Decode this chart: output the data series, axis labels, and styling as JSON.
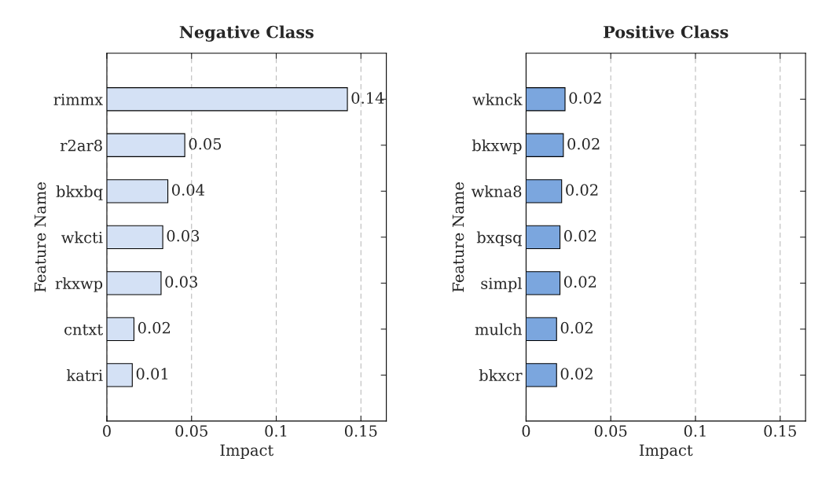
{
  "chart_data": [
    {
      "type": "bar",
      "orientation": "horizontal",
      "title": "Negative Class",
      "xlabel": "Impact",
      "ylabel": "Feature Name",
      "categories": [
        "rimmx",
        "r2ar8",
        "bkxbq",
        "wkcti",
        "rkxwp",
        "cntxt",
        "katri"
      ],
      "values": [
        0.142,
        0.046,
        0.036,
        0.033,
        0.032,
        0.016,
        0.015
      ],
      "value_labels": [
        "0.14",
        "0.05",
        "0.04",
        "0.03",
        "0.03",
        "0.02",
        "0.01"
      ],
      "color": "#d4e1f5",
      "xlim": [
        0,
        0.165
      ],
      "xticks": [
        0,
        0.05,
        0.1,
        0.15
      ],
      "grid": "x"
    },
    {
      "type": "bar",
      "orientation": "horizontal",
      "title": "Positive Class",
      "xlabel": "Impact",
      "ylabel": "Feature Name",
      "categories": [
        "wknck",
        "bkxwp",
        "wkna8",
        "bxqsq",
        "simpl",
        "mulch",
        "bkxcr"
      ],
      "values": [
        0.023,
        0.022,
        0.021,
        0.02,
        0.02,
        0.018,
        0.018
      ],
      "value_labels": [
        "0.02",
        "0.02",
        "0.02",
        "0.02",
        "0.02",
        "0.02",
        "0.02"
      ],
      "color": "#7ba6de",
      "xlim": [
        0,
        0.165
      ],
      "xticks": [
        0,
        0.05,
        0.1,
        0.15
      ],
      "grid": "x"
    }
  ]
}
